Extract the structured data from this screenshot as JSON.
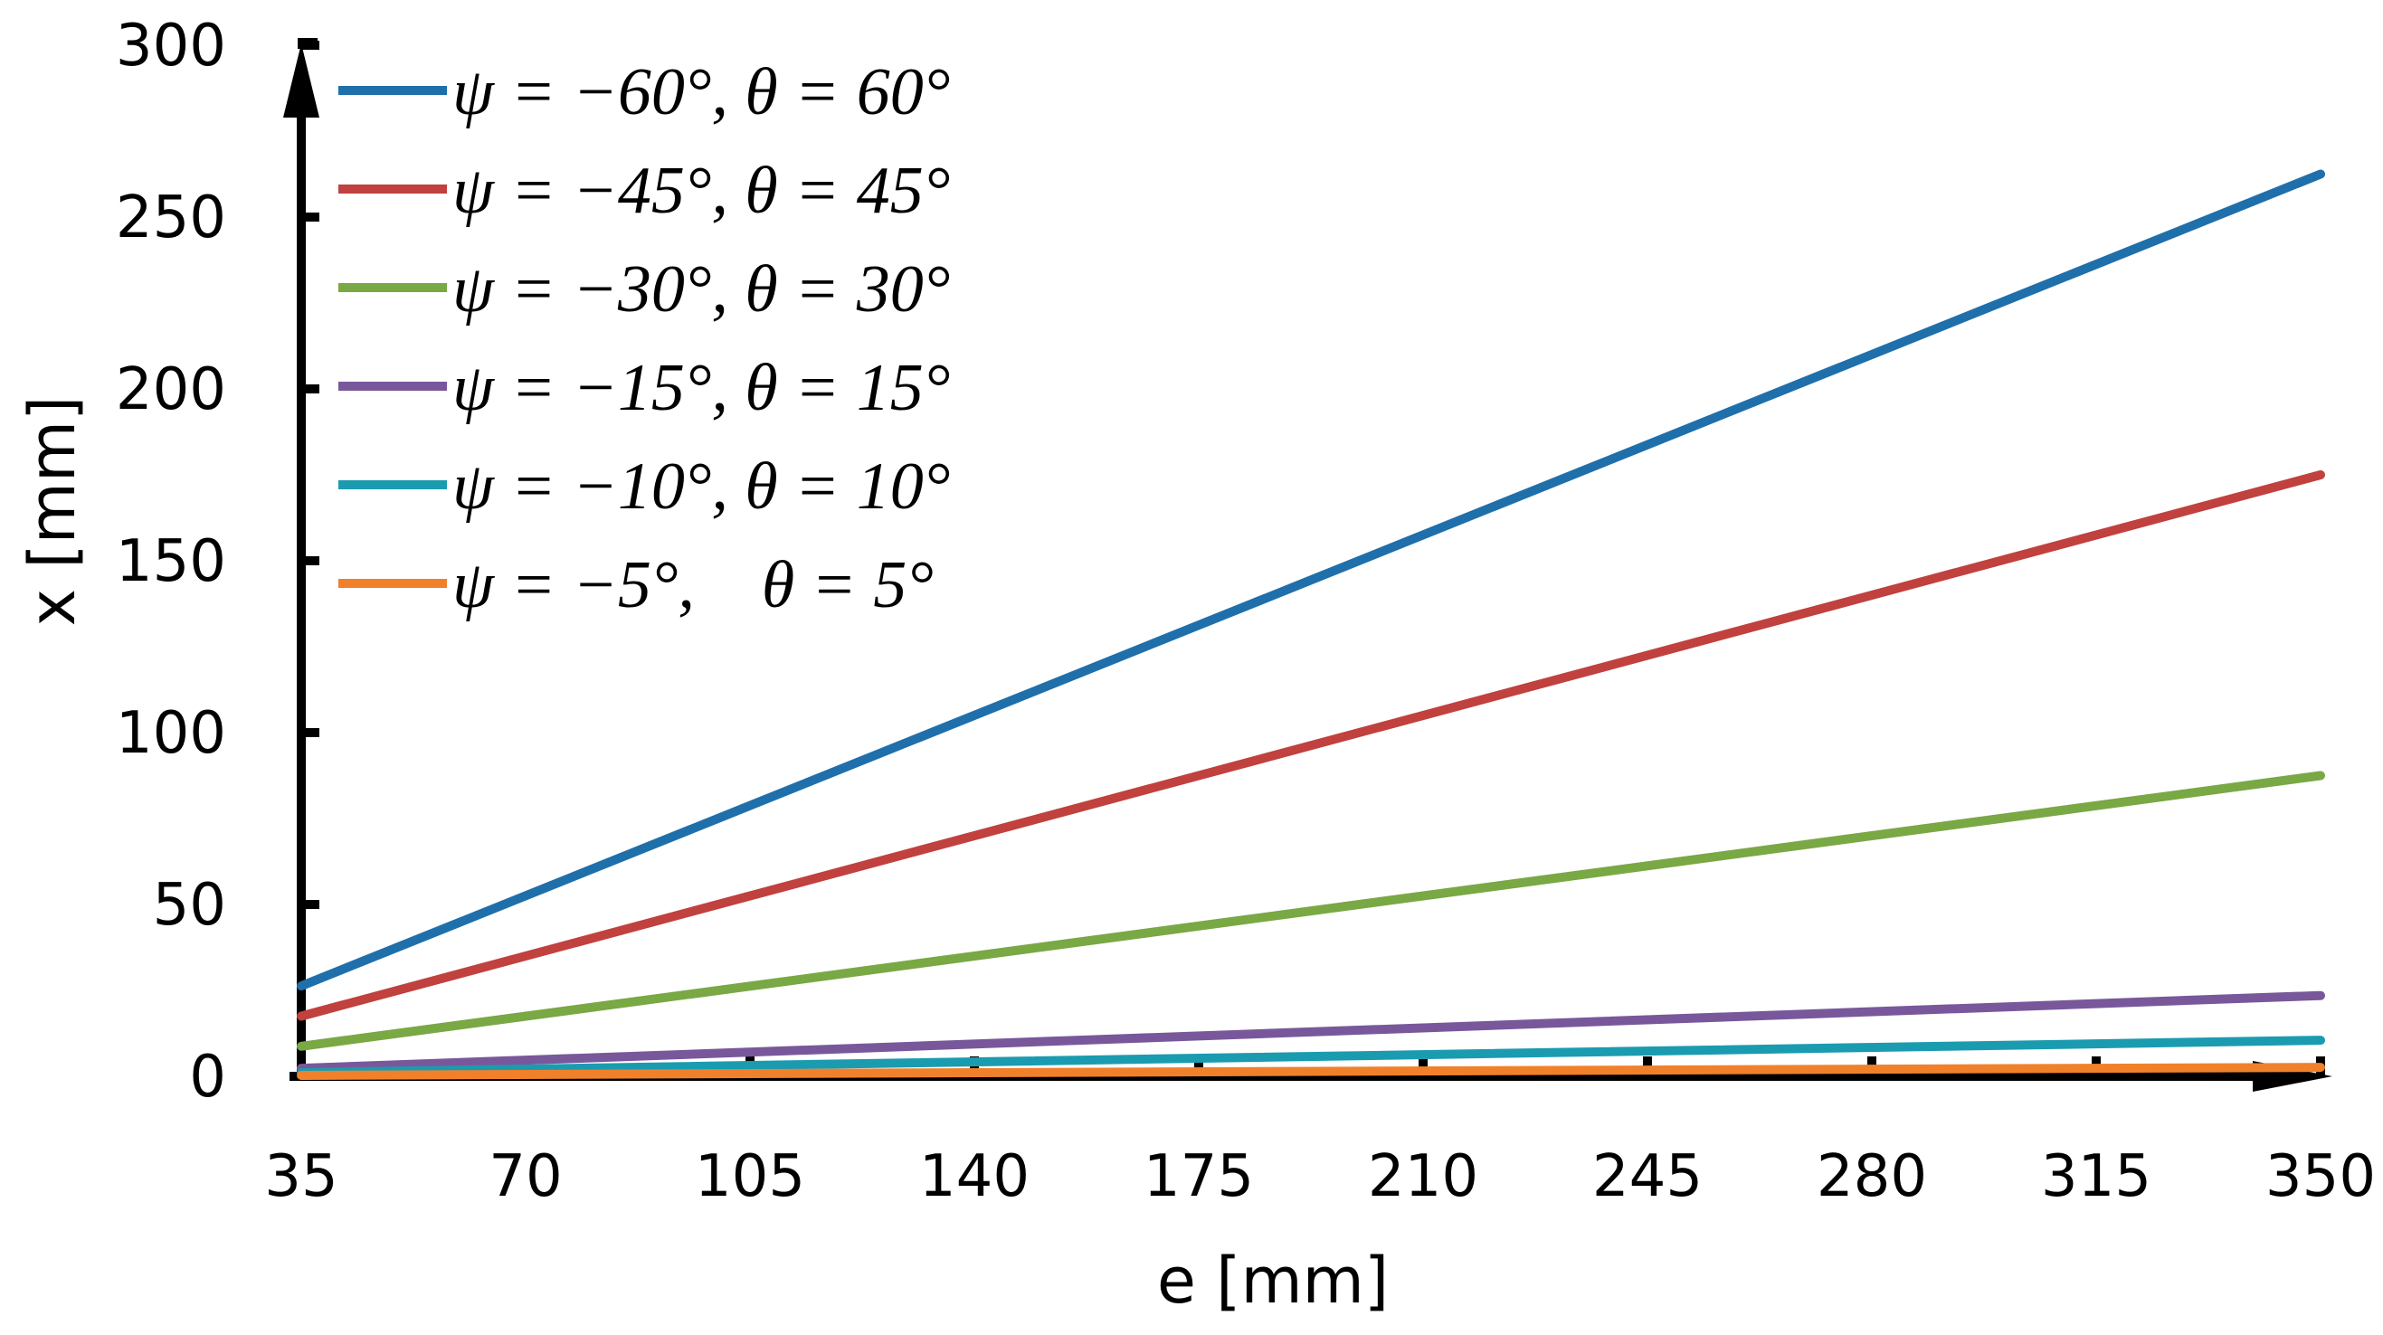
{
  "chart_data": {
    "type": "line",
    "title": "",
    "xlabel": "e [mm]",
    "ylabel": "x [mm]",
    "xlim": [
      35,
      350
    ],
    "ylim": [
      0,
      300
    ],
    "x_ticks": [
      35,
      70,
      105,
      140,
      175,
      210,
      245,
      280,
      315,
      350
    ],
    "y_ticks": [
      0,
      50,
      100,
      150,
      200,
      250,
      300
    ],
    "grid": false,
    "legend_position": "top-left",
    "x": [
      35,
      350
    ],
    "series": [
      {
        "name": "ψ = −60°, θ = 60°",
        "values": [
          26.3,
          262.5
        ],
        "color": "#1f6fab"
      },
      {
        "name": "ψ = −45°, θ = 45°",
        "values": [
          17.5,
          175.0
        ],
        "color": "#c0413e"
      },
      {
        "name": "ψ = −30°, θ = 30°",
        "values": [
          8.75,
          87.5
        ],
        "color": "#79a844"
      },
      {
        "name": "ψ = −15°, θ = 15°",
        "values": [
          2.35,
          23.5
        ],
        "color": "#78589b"
      },
      {
        "name": "ψ = −10°, θ = 10°",
        "values": [
          1.05,
          10.5
        ],
        "color": "#1b9bb0"
      },
      {
        "name": "ψ = −5°,    θ = 5°",
        "values": [
          0.26,
          2.6
        ],
        "color": "#f0812a"
      }
    ]
  }
}
